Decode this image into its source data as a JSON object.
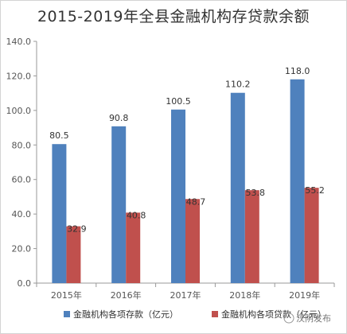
{
  "chart_data": {
    "type": "bar",
    "title": "2015-2019年全县金融机构存贷款余额",
    "categories": [
      "2015年",
      "2016年",
      "2017年",
      "2018年",
      "2019年"
    ],
    "series": [
      {
        "name": "金融机构各项存款（亿元）",
        "color": "#4f81bd",
        "values": [
          80.5,
          90.8,
          100.5,
          110.2,
          118.0
        ]
      },
      {
        "name": "金融机构各项贷款（亿元）",
        "color": "#c0504d",
        "values": [
          32.9,
          40.8,
          48.7,
          53.8,
          55.2
        ]
      }
    ],
    "ylim": [
      0,
      140
    ],
    "yticks": [
      0.0,
      20.0,
      40.0,
      60.0,
      80.0,
      100.0,
      120.0,
      140.0
    ],
    "ytick_labels": [
      "0.0",
      "20.0",
      "40.0",
      "60.0",
      "80.0",
      "100.0",
      "120.0",
      "140.0"
    ],
    "data_labels": [
      [
        "80.5",
        "90.8",
        "100.5",
        "110.2",
        "118.0"
      ],
      [
        "32.9",
        "40.8",
        "48.7",
        "53.8",
        "55.2"
      ]
    ],
    "xlabel": "",
    "ylabel": "",
    "legend_position": "bottom",
    "grid": false
  },
  "watermark": "汉阴发布"
}
